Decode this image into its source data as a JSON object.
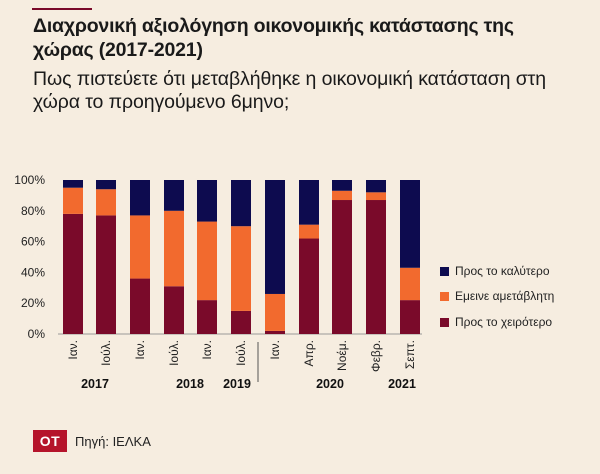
{
  "header": {
    "title": "Διαχρονική αξιολόγηση οικονομικής κατάστασης της χώρας (2017-2021)",
    "subtitle": "Πως πιστεύετε ότι μεταβλήθηκε η οικονομική κατάσταση στη χώρα το προηγούμενο 6μηνο;"
  },
  "footer": {
    "logo": "OT",
    "source": "Πηγή: ΙΕΛΚΑ"
  },
  "colors": {
    "worse": "#7a0a2a",
    "same": "#f26a2e",
    "better": "#0d0b4f"
  },
  "chart_data": {
    "type": "bar",
    "stacked": true,
    "categories": [
      "Ιαν.",
      "Ιούλ.",
      "Ιαν.",
      "Ιούλ.",
      "Ιαν.",
      "Ιούλ.",
      "Ιαν.",
      "Απρ.",
      "Νοέμ.",
      "Φεβρ.",
      "Σεπτ."
    ],
    "year_groups": [
      {
        "label": "2017",
        "from": 0,
        "to": 1
      },
      {
        "label": "2018",
        "from": 2,
        "to": 4
      },
      {
        "label": "2019",
        "from": 5,
        "to": 5
      },
      {
        "label": "2020",
        "from": 6,
        "to": 8
      },
      {
        "label": "2021",
        "from": 9,
        "to": 10
      }
    ],
    "series": [
      {
        "name": "Προς το χειρότερο",
        "key": "worse",
        "values": [
          78,
          77,
          36,
          31,
          22,
          15,
          2,
          62,
          87,
          87,
          22
        ]
      },
      {
        "name": "Εμεινε αμετάβλητη",
        "key": "same",
        "values": [
          17,
          17,
          41,
          49,
          51,
          55,
          24,
          9,
          6,
          5,
          21
        ]
      },
      {
        "name": "Προς το καλύτερο",
        "key": "better",
        "values": [
          5,
          6,
          23,
          20,
          27,
          30,
          74,
          29,
          7,
          8,
          57
        ]
      }
    ],
    "legend_order": [
      "better",
      "same",
      "worse"
    ],
    "yticks": [
      "0%",
      "20%",
      "40%",
      "60%",
      "80%",
      "100%"
    ],
    "ylim": [
      0,
      100
    ],
    "legend_position": "right"
  }
}
